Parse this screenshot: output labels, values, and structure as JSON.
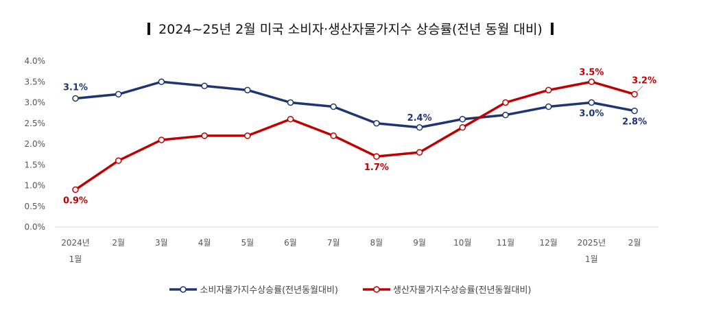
{
  "chart_data": {
    "type": "line",
    "title": "2024~25년 2월 미국 소비자·생산자물가지수 상승률(전년 동월 대비)",
    "categories": [
      [
        "2024년",
        "1월"
      ],
      [
        "2월"
      ],
      [
        "3월"
      ],
      [
        "4월"
      ],
      [
        "5월"
      ],
      [
        "6월"
      ],
      [
        "7월"
      ],
      [
        "8월"
      ],
      [
        "9월"
      ],
      [
        "10월"
      ],
      [
        "11월"
      ],
      [
        "12월"
      ],
      [
        "2025년",
        "1월"
      ],
      [
        "2월"
      ]
    ],
    "yticks": [
      "0.0%",
      "0.5%",
      "1.0%",
      "1.5%",
      "2.0%",
      "2.5%",
      "3.0%",
      "3.5%",
      "4.0%"
    ],
    "ylim": [
      0,
      4
    ],
    "series": [
      {
        "name": "소비자물가지수상승률(전년동월대비)",
        "color": "#1f3473",
        "values": [
          3.1,
          3.2,
          3.5,
          3.4,
          3.3,
          3.0,
          2.9,
          2.5,
          2.4,
          2.6,
          2.7,
          2.9,
          3.0,
          2.8
        ],
        "labels": [
          {
            "i": 0,
            "text": "3.1%",
            "pos": "above"
          },
          {
            "i": 8,
            "text": "2.4%",
            "pos": "above"
          },
          {
            "i": 12,
            "text": "3.0%",
            "pos": "below"
          },
          {
            "i": 13,
            "text": "2.8%",
            "pos": "below"
          }
        ]
      },
      {
        "name": "생산자물가지수상승률(전년동월대비)",
        "color": "#c00000",
        "values": [
          0.9,
          1.6,
          2.1,
          2.2,
          2.2,
          2.6,
          2.2,
          1.7,
          1.8,
          2.4,
          3.0,
          3.3,
          3.5,
          3.2
        ],
        "labels": [
          {
            "i": 0,
            "text": "0.9%",
            "pos": "below"
          },
          {
            "i": 7,
            "text": "1.7%",
            "pos": "below"
          },
          {
            "i": 12,
            "text": "3.5%",
            "pos": "above"
          },
          {
            "i": 13,
            "text": "3.2%",
            "pos": "above"
          }
        ]
      }
    ],
    "legend": "bottom"
  }
}
